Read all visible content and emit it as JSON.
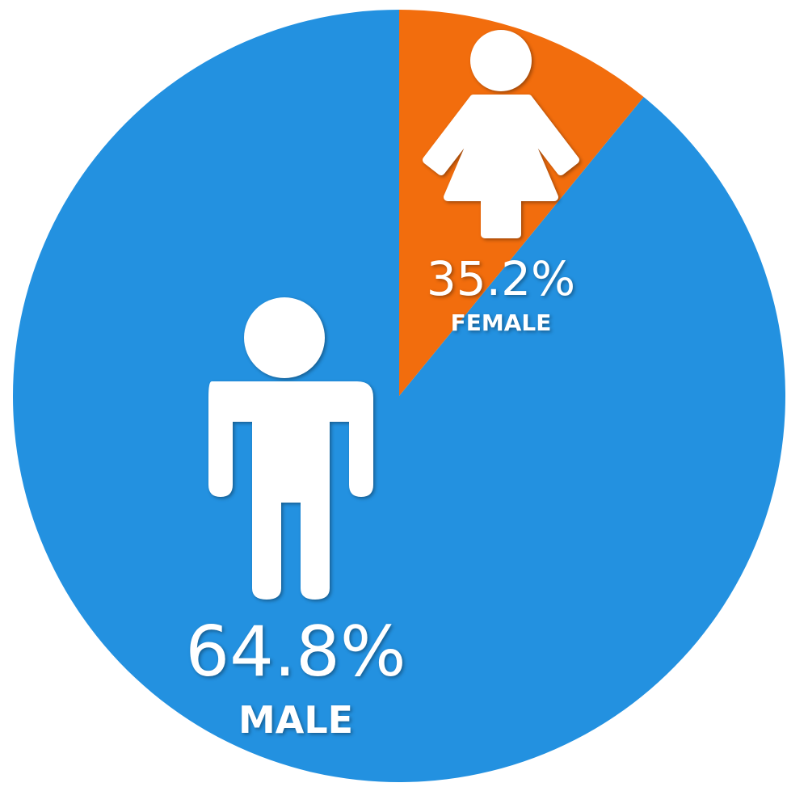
{
  "chart_data": {
    "type": "pie",
    "slices": [
      {
        "label": "FEMALE",
        "value": 35.2,
        "display": "35.2%",
        "color": "#f26d0d",
        "icon": "female-person-icon"
      },
      {
        "label": "MALE",
        "value": 64.8,
        "display": "64.8%",
        "color": "#2391e0",
        "icon": "male-person-icon"
      }
    ],
    "legend": "none"
  }
}
